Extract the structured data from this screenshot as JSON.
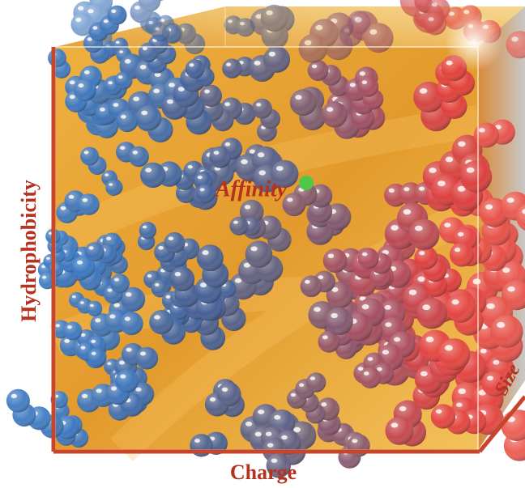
{
  "labels": {
    "y_axis": "Hydrophobicity",
    "x_axis": "Charge",
    "z_axis": "Size",
    "center": "Affinity"
  }
}
